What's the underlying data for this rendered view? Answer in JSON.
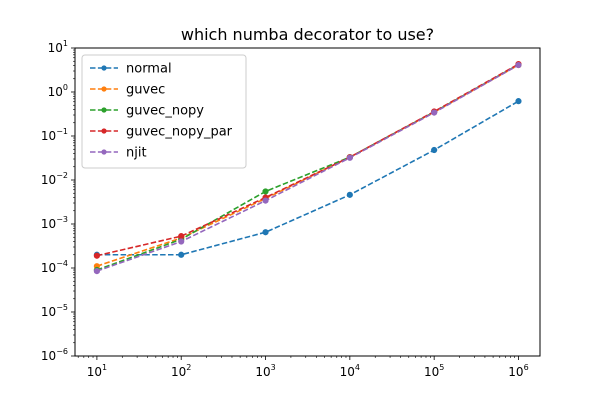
{
  "chart_data": {
    "type": "line",
    "title": "which numba decorator to use?",
    "xlabel": "",
    "ylabel": "",
    "x_scale": "log",
    "y_scale": "log",
    "xlim": [
      5.5,
      1800000
    ],
    "ylim": [
      1e-06,
      10
    ],
    "x_ticks": [
      {
        "base": "10",
        "exp": "1",
        "value": 10
      },
      {
        "base": "10",
        "exp": "2",
        "value": 100
      },
      {
        "base": "10",
        "exp": "3",
        "value": 1000
      },
      {
        "base": "10",
        "exp": "4",
        "value": 10000
      },
      {
        "base": "10",
        "exp": "5",
        "value": 100000
      },
      {
        "base": "10",
        "exp": "6",
        "value": 1000000
      }
    ],
    "y_ticks": [
      {
        "base": "10",
        "exp": "−6",
        "value": 1e-06
      },
      {
        "base": "10",
        "exp": "−5",
        "value": 1e-05
      },
      {
        "base": "10",
        "exp": "−4",
        "value": 0.0001
      },
      {
        "base": "10",
        "exp": "−3",
        "value": 0.001
      },
      {
        "base": "10",
        "exp": "−2",
        "value": 0.01
      },
      {
        "base": "10",
        "exp": "−1",
        "value": 0.1
      },
      {
        "base": "10",
        "exp": "0",
        "value": 1
      },
      {
        "base": "10",
        "exp": "1",
        "value": 10
      }
    ],
    "grid": false,
    "legend_position": "top-left",
    "x": [
      10,
      100,
      1000,
      10000,
      100000,
      1000000
    ],
    "series": [
      {
        "name": "normal",
        "color": "#1f77b4",
        "values": [
          0.0002,
          0.0002,
          0.00065,
          0.0046,
          0.048,
          0.62
        ]
      },
      {
        "name": "guvec",
        "color": "#ff7f0e",
        "values": [
          0.00011,
          0.00048,
          0.0038,
          0.033,
          0.35,
          4.1
        ]
      },
      {
        "name": "guvec_nopy",
        "color": "#2ca02c",
        "values": [
          9e-05,
          0.00045,
          0.0055,
          0.033,
          0.35,
          4.2
        ]
      },
      {
        "name": "guvec_nopy_par",
        "color": "#d62728",
        "values": [
          0.00019,
          0.00053,
          0.004,
          0.033,
          0.36,
          4.3
        ]
      },
      {
        "name": "njit",
        "color": "#9467bd",
        "values": [
          8.5e-05,
          0.0004,
          0.0034,
          0.032,
          0.34,
          4.1
        ]
      }
    ]
  }
}
